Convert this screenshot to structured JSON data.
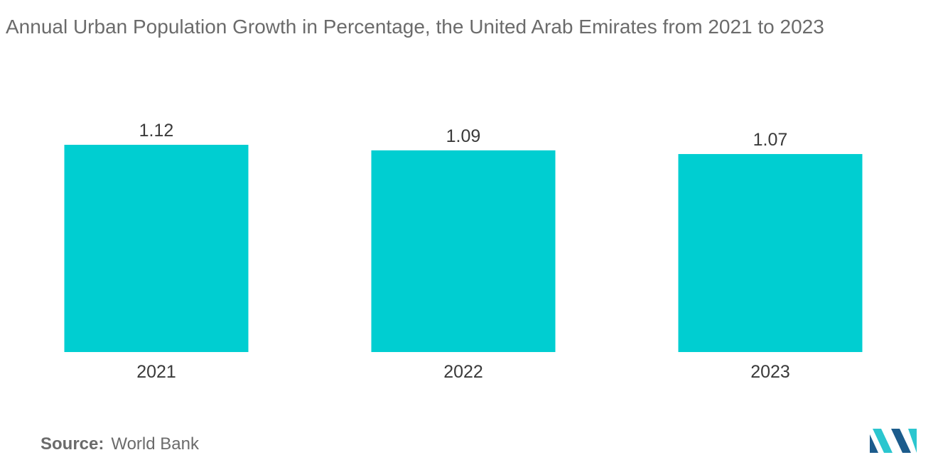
{
  "title": "Annual Urban Population Growth in Percentage, the United Arab Emirates from 2021 to 2023",
  "source": {
    "label": "Source:",
    "value": "World Bank"
  },
  "colors": {
    "bar": "#00ced1",
    "text": "#6b6b6b",
    "value_label": "#3a3a3a",
    "logo_dark": "#1c5c8c",
    "logo_light": "#2bc6cf"
  },
  "logo_icon": "mordor-intelligence-logo-icon",
  "chart_data": {
    "type": "bar",
    "title": "Annual Urban Population Growth in Percentage, the United Arab Emirates from 2021 to 2023",
    "categories": [
      "2021",
      "2022",
      "2023"
    ],
    "values": [
      1.12,
      1.09,
      1.07
    ],
    "data_labels": [
      "1.12",
      "1.09",
      "1.07"
    ],
    "xlabel": "",
    "ylabel": "",
    "ylim": [
      0,
      1.12
    ],
    "grid": false,
    "legend": "none"
  }
}
